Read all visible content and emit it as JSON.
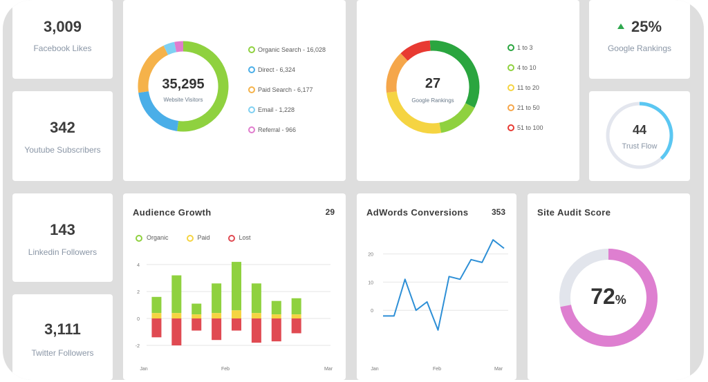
{
  "stats": {
    "facebook": {
      "value": "3,009",
      "label": "Facebook Likes"
    },
    "youtube": {
      "value": "342",
      "label": "Youtube Subscribers"
    },
    "linkedin": {
      "value": "143",
      "label": "Linkedin Followers"
    },
    "twitter": {
      "value": "3,111",
      "label": "Twitter Followers"
    },
    "google_rankings": {
      "value": "25%",
      "label": "Google Rankings",
      "trend": "up"
    },
    "trust_flow": {
      "value": "44",
      "label": "Trust Flow",
      "level": 0.38
    }
  },
  "visitors": {
    "center_value": "35,295",
    "center_label": "Website Visitors",
    "legend": [
      {
        "label": "Organic Search - 16,028",
        "color": "#8fd13f"
      },
      {
        "label": "Direct - 6,324",
        "color": "#4aaee8"
      },
      {
        "label": "Paid Search - 6,177",
        "color": "#f5b24a"
      },
      {
        "label": "Email - 1,228",
        "color": "#7fd0f2"
      },
      {
        "label": "Referral - 966",
        "color": "#e07ccd"
      }
    ]
  },
  "google_rankings_card": {
    "center_value": "27",
    "center_label": "Google Rankings",
    "legend": [
      {
        "label": "1 to 3",
        "color": "#2aa53f"
      },
      {
        "label": "4 to 10",
        "color": "#8fd13f"
      },
      {
        "label": "11 to 20",
        "color": "#f5d442"
      },
      {
        "label": "21 to 50",
        "color": "#f5a64a"
      },
      {
        "label": "51 to 100",
        "color": "#e83a32"
      }
    ]
  },
  "audience_growth": {
    "title": "Audience Growth",
    "count": "29",
    "legend": [
      {
        "label": "Organic",
        "color": "#8fd13f"
      },
      {
        "label": "Paid",
        "color": "#f5d442"
      },
      {
        "label": "Lost",
        "color": "#e04a52"
      }
    ],
    "y_ticks": [
      "4",
      "2",
      "0",
      "-2"
    ],
    "x_ticks": [
      "Jan",
      "Feb",
      "Mar"
    ]
  },
  "adwords": {
    "title": "AdWords Conversions",
    "count": "353",
    "y_ticks": [
      "20",
      "10",
      "0"
    ],
    "x_ticks": [
      "Jan",
      "Feb",
      "Mar"
    ]
  },
  "site_audit": {
    "title": "Site Audit Score",
    "value": "72",
    "unit": "%",
    "score": 0.72
  },
  "chart_data": [
    {
      "type": "pie",
      "center_label": "Website Visitors",
      "categories": [
        "Organic Search",
        "Direct",
        "Paid Search",
        "Email",
        "Referral"
      ],
      "values": [
        16028,
        6324,
        6177,
        1228,
        966
      ],
      "colors": [
        "#8fd13f",
        "#4aaee8",
        "#f5b24a",
        "#7fd0f2",
        "#e07ccd"
      ]
    },
    {
      "type": "pie",
      "center_label": "Google Rankings",
      "categories": [
        "1 to 3",
        "4 to 10",
        "11 to 20",
        "21 to 50",
        "51 to 100"
      ],
      "values": [
        9,
        4,
        7,
        4,
        3
      ],
      "colors": [
        "#2aa53f",
        "#8fd13f",
        "#f5d442",
        "#f5a64a",
        "#e83a32"
      ]
    },
    {
      "type": "bar",
      "title": "Audience Growth",
      "categories": [
        "1",
        "2",
        "3",
        "4",
        "5",
        "6",
        "7",
        "8",
        "9"
      ],
      "x_ticks": [
        "Jan",
        "Feb",
        "Mar"
      ],
      "series": [
        {
          "name": "Organic",
          "values": [
            1.2,
            2.8,
            0.8,
            2.2,
            3.6,
            2.2,
            1.0,
            1.2,
            0
          ]
        },
        {
          "name": "Paid",
          "values": [
            0.4,
            0.4,
            0.3,
            0.4,
            0.6,
            0.4,
            0.3,
            0.3,
            0
          ]
        },
        {
          "name": "Lost",
          "values": [
            -1.4,
            -2.0,
            -0.9,
            -1.6,
            -0.9,
            -1.8,
            -1.7,
            -1.1,
            0
          ]
        }
      ],
      "ylim": [
        -2,
        4
      ],
      "y_ticks": [
        4,
        2,
        0,
        -2
      ]
    },
    {
      "type": "line",
      "title": "AdWords Conversions",
      "x": [
        1,
        2,
        3,
        4,
        5,
        6,
        7,
        8,
        9,
        10,
        11,
        12
      ],
      "x_ticks": [
        "Jan",
        "Feb",
        "Mar"
      ],
      "series": [
        {
          "values": [
            -2,
            -2,
            11,
            0,
            3,
            -7,
            12,
            11,
            18,
            17,
            25,
            22
          ]
        }
      ],
      "y_ticks": [
        20,
        10,
        0
      ]
    },
    {
      "type": "pie",
      "title": "Site Audit Score",
      "categories": [
        "Score",
        "Remaining"
      ],
      "values": [
        72,
        28
      ],
      "colors": [
        "#de7fd0",
        "#e2e5ec"
      ]
    }
  ]
}
